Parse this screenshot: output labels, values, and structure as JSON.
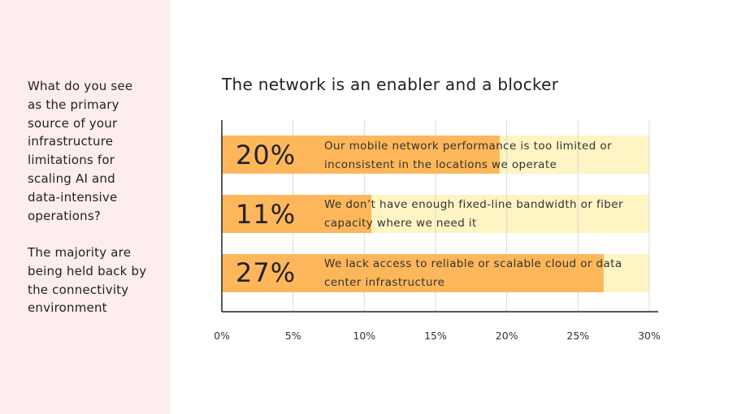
{
  "sidebar": {
    "question": "What do you see as the primary source of your infrastructure limitations for scaling AI and data-intensive operations?",
    "answer": "The majority are being held back by the connectivity environment"
  },
  "chart_data": {
    "type": "bar",
    "orientation": "horizontal",
    "title": "The network is an enabler and a blocker",
    "categories": [
      "Our mobile network performance is too limited or inconsistent in the locations we operate",
      "We don’t have enough fixed-line bandwidth or fiber capacity where we need it",
      "We lack access to reliable or scalable cloud or data center infrastructure"
    ],
    "values": [
      20,
      11,
      27
    ],
    "value_labels": [
      "20%",
      "11%",
      "27%"
    ],
    "bar_values": [
      19.5,
      10.5,
      26.8
    ],
    "xlim": [
      0,
      30
    ],
    "ticks": [
      0,
      5,
      10,
      15,
      20,
      25,
      30
    ],
    "tick_labels": [
      "0%",
      "5%",
      "10%",
      "15%",
      "20%",
      "25%",
      "30%"
    ],
    "grid": true,
    "colors": {
      "bar": "#fdb75a",
      "track": "#fff4c3",
      "grid": "#d9d9d9",
      "axis": "#222222"
    }
  }
}
